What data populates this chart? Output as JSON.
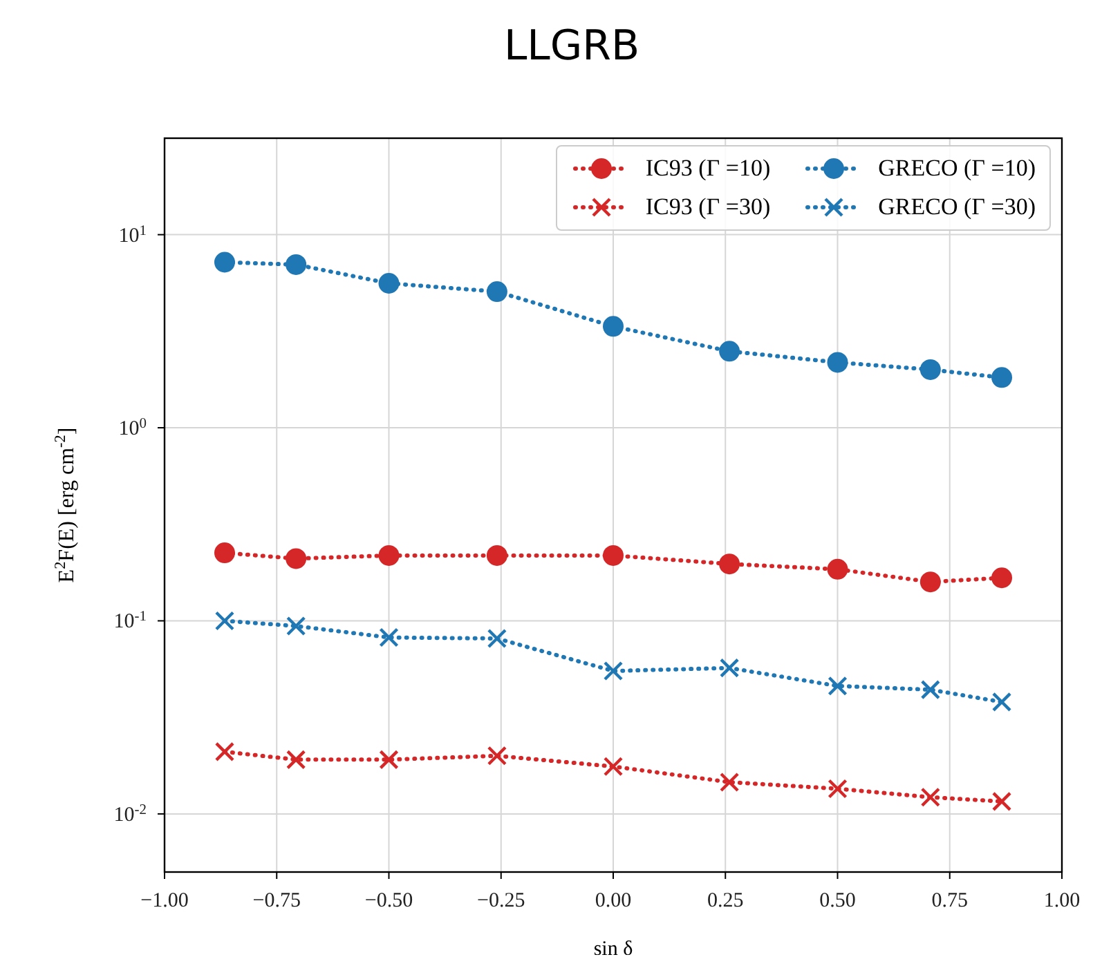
{
  "chart_data": {
    "type": "line",
    "title": "LLGRB",
    "xlabel": "sin δ",
    "ylabel": "E$^{2}$F(E) [erg cm$^{-2}$]",
    "x": [
      -0.866,
      -0.707,
      -0.5,
      -0.259,
      0,
      0.259,
      0.5,
      0.707,
      0.866
    ],
    "series": [
      {
        "name": "IC93 (Γ =10)",
        "color": "#d62728",
        "marker": "circle",
        "values": [
          0.225,
          0.21,
          0.218,
          0.218,
          0.218,
          0.197,
          0.185,
          0.159,
          0.167
        ]
      },
      {
        "name": "IC93 (Γ =30)",
        "color": "#d62728",
        "marker": "cross",
        "values": [
          0.021,
          0.0191,
          0.0191,
          0.02,
          0.0176,
          0.0146,
          0.0135,
          0.0122,
          0.0116
        ]
      },
      {
        "name": "GRECO (Γ =10)",
        "color": "#1f77b4",
        "marker": "circle",
        "values": [
          7.2,
          7.0,
          5.6,
          5.07,
          3.35,
          2.49,
          2.18,
          2.0,
          1.82
        ]
      },
      {
        "name": "GRECO (Γ =30)",
        "color": "#1f77b4",
        "marker": "cross",
        "values": [
          0.1,
          0.094,
          0.082,
          0.081,
          0.055,
          0.057,
          0.046,
          0.044,
          0.038
        ]
      }
    ],
    "log": "y",
    "xlim": [
      -1,
      1
    ],
    "ylim": [
      0.005,
      31.6
    ],
    "xticks": [
      {
        "value": -1,
        "label": "−1.00"
      },
      {
        "value": -0.75,
        "label": "−0.75"
      },
      {
        "value": -0.5,
        "label": "−0.50"
      },
      {
        "value": -0.25,
        "label": "−0.25"
      },
      {
        "value": 0,
        "label": "0.00"
      },
      {
        "value": 0.25,
        "label": "0.25"
      },
      {
        "value": 0.5,
        "label": "0.50"
      },
      {
        "value": 0.75,
        "label": "0.75"
      },
      {
        "value": 1,
        "label": "1.00"
      }
    ],
    "yticks": [
      {
        "value": 0.01,
        "label": "10$^{-2}$"
      },
      {
        "value": 0.1,
        "label": "10$^{-1}$"
      },
      {
        "value": 1,
        "label": "10$^{0}$"
      },
      {
        "value": 10,
        "label": "10$^{1}$"
      }
    ],
    "grid": true,
    "legend": "top right",
    "line_style": "dotted"
  }
}
